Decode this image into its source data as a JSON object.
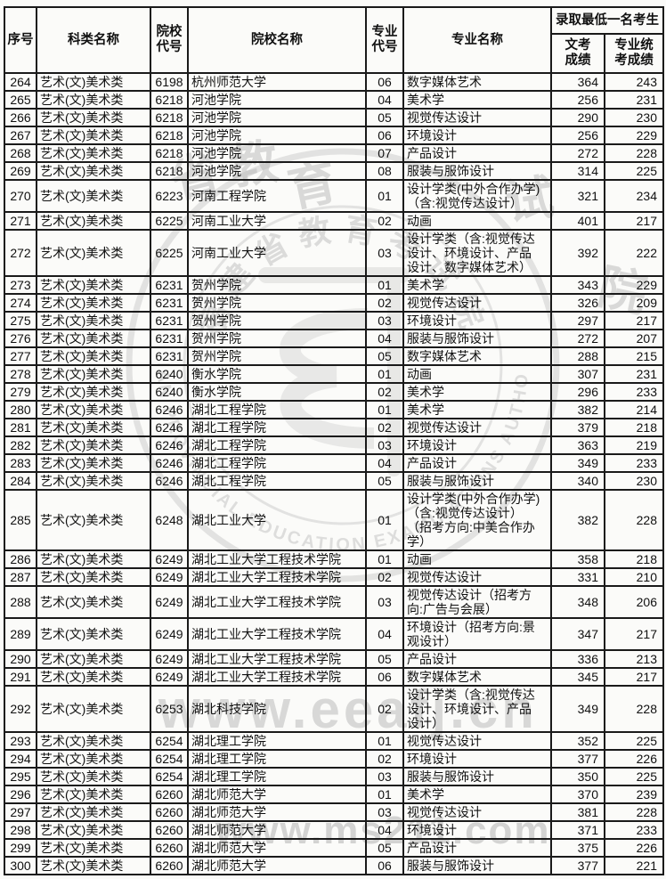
{
  "table": {
    "header": {
      "serial": "序号",
      "category": "科类名称",
      "school_code": "院校\n代号",
      "school_name": "院校名称",
      "major_code": "专业\n代号",
      "major_name": "专业名称",
      "admit_group": "录取最低一名考生",
      "wenkao": "文考\n成绩",
      "tongkao": "专业统\n考成绩"
    },
    "rows": [
      [
        264,
        "艺术(文)美术类",
        "6198",
        "杭州师范大学",
        "06",
        "数字媒体艺术",
        364,
        243
      ],
      [
        265,
        "艺术(文)美术类",
        "6218",
        "河池学院",
        "04",
        "美术学",
        256,
        231
      ],
      [
        266,
        "艺术(文)美术类",
        "6218",
        "河池学院",
        "05",
        "视觉传达设计",
        290,
        230
      ],
      [
        267,
        "艺术(文)美术类",
        "6218",
        "河池学院",
        "06",
        "环境设计",
        256,
        229
      ],
      [
        268,
        "艺术(文)美术类",
        "6218",
        "河池学院",
        "07",
        "产品设计",
        272,
        228
      ],
      [
        269,
        "艺术(文)美术类",
        "6218",
        "河池学院",
        "08",
        "服装与服饰设计",
        314,
        225
      ],
      [
        270,
        "艺术(文)美术类",
        "6223",
        "河南工程学院",
        "01",
        "设计学类(中外合作办学)\n（含:视觉传达设计）",
        321,
        234
      ],
      [
        271,
        "艺术(文)美术类",
        "6225",
        "河南工业大学",
        "02",
        "动画",
        401,
        217
      ],
      [
        272,
        "艺术(文)美术类",
        "6225",
        "河南工业大学",
        "03",
        "设计学类（含:视觉传达\n设计、环境设计、产品\n设计、数字媒体艺术）",
        392,
        222
      ],
      [
        273,
        "艺术(文)美术类",
        "6231",
        "贺州学院",
        "01",
        "美术学",
        343,
        229
      ],
      [
        274,
        "艺术(文)美术类",
        "6231",
        "贺州学院",
        "02",
        "视觉传达设计",
        326,
        209
      ],
      [
        275,
        "艺术(文)美术类",
        "6231",
        "贺州学院",
        "03",
        "环境设计",
        297,
        217
      ],
      [
        276,
        "艺术(文)美术类",
        "6231",
        "贺州学院",
        "04",
        "服装与服饰设计",
        272,
        207
      ],
      [
        277,
        "艺术(文)美术类",
        "6231",
        "贺州学院",
        "05",
        "数字媒体艺术",
        288,
        215
      ],
      [
        278,
        "艺术(文)美术类",
        "6240",
        "衡水学院",
        "01",
        "动画",
        307,
        231
      ],
      [
        279,
        "艺术(文)美术类",
        "6240",
        "衡水学院",
        "02",
        "美术学",
        296,
        233
      ],
      [
        280,
        "艺术(文)美术类",
        "6246",
        "湖北工程学院",
        "01",
        "美术学",
        382,
        214
      ],
      [
        281,
        "艺术(文)美术类",
        "6246",
        "湖北工程学院",
        "02",
        "视觉传达设计",
        379,
        218
      ],
      [
        282,
        "艺术(文)美术类",
        "6246",
        "湖北工程学院",
        "03",
        "环境设计",
        363,
        219
      ],
      [
        283,
        "艺术(文)美术类",
        "6246",
        "湖北工程学院",
        "04",
        "产品设计",
        349,
        233
      ],
      [
        284,
        "艺术(文)美术类",
        "6246",
        "湖北工程学院",
        "05",
        "服装与服饰设计",
        340,
        230
      ],
      [
        285,
        "艺术(文)美术类",
        "6248",
        "湖北工业大学",
        "01",
        "设计学类(中外合作办学)\n（含:视觉传达设计）\n（招考方向:中美合作办\n学）",
        382,
        228
      ],
      [
        286,
        "艺术(文)美术类",
        "6249",
        "湖北工业大学工程技术学院",
        "01",
        "动画",
        358,
        218
      ],
      [
        287,
        "艺术(文)美术类",
        "6249",
        "湖北工业大学工程技术学院",
        "02",
        "视觉传达设计",
        331,
        210
      ],
      [
        288,
        "艺术(文)美术类",
        "6249",
        "湖北工业大学工程技术学院",
        "03",
        "视觉传达设计（招考方\n向:广告与会展）",
        348,
        206
      ],
      [
        289,
        "艺术(文)美术类",
        "6249",
        "湖北工业大学工程技术学院",
        "04",
        "环境设计（招考方向:景\n观设计）",
        347,
        217
      ],
      [
        290,
        "艺术(文)美术类",
        "6249",
        "湖北工业大学工程技术学院",
        "05",
        "产品设计",
        336,
        213
      ],
      [
        291,
        "艺术(文)美术类",
        "6249",
        "湖北工业大学工程技术学院",
        "06",
        "数字媒体艺术",
        345,
        217
      ],
      [
        292,
        "艺术(文)美术类",
        "6253",
        "湖北科技学院",
        "02",
        "设计学类（含:视觉传达\n设计、环境设计、产品\n设计）",
        349,
        228
      ],
      [
        293,
        "艺术(文)美术类",
        "6254",
        "湖北理工学院",
        "01",
        "视觉传达设计",
        352,
        225
      ],
      [
        294,
        "艺术(文)美术类",
        "6254",
        "湖北理工学院",
        "02",
        "环境设计",
        377,
        226
      ],
      [
        295,
        "艺术(文)美术类",
        "6254",
        "湖北理工学院",
        "03",
        "服装与服饰设计",
        350,
        225
      ],
      [
        296,
        "艺术(文)美术类",
        "6260",
        "湖北师范大学",
        "01",
        "美术学",
        370,
        239
      ],
      [
        297,
        "艺术(文)美术类",
        "6260",
        "湖北师范大学",
        "03",
        "视觉传达设计",
        381,
        228
      ],
      [
        298,
        "艺术(文)美术类",
        "6260",
        "湖北师范大学",
        "04",
        "环境设计",
        371,
        233
      ],
      [
        299,
        "艺术(文)美术类",
        "6260",
        "湖北师范大学",
        "05",
        "产品设计",
        375,
        226
      ],
      [
        300,
        "艺术(文)美术类",
        "6260",
        "湖北师范大学",
        "06",
        "服装与服饰设计",
        377,
        221
      ]
    ]
  },
  "watermarks": {
    "center_url": "www.eeafj.cn",
    "bottom_url": "www.ms211.com",
    "seal_en": "FUJIAN PROVINCIAL EDUCATION EXAMINATIONS AUTHORITY",
    "seal_cn": "福建省教育考试院",
    "stamp_chars": [
      "省",
      "教",
      "育",
      "试",
      "院"
    ]
  },
  "colors": {
    "border": "#1a1a1a",
    "text": "#101010",
    "watermark": "#c3c3c3",
    "background": "#fbfbf9"
  }
}
